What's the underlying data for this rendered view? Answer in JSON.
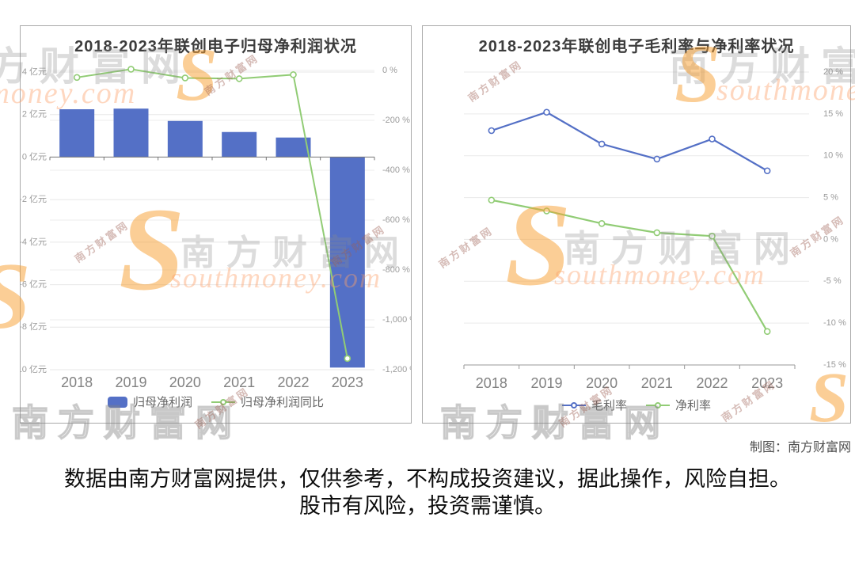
{
  "page": {
    "credit": "制图：南方财富网",
    "disclaimer_line1": "数据由南方财富网提供，仅供参考，不构成投资建议，据此操作，风险自担。",
    "disclaimer_line2": "股市有风险，投资需谨慎。"
  },
  "watermark": {
    "brand_cn": "南方财富网",
    "brand_en": "southmoney.com",
    "s_glyph": "S"
  },
  "chart_data": [
    {
      "type": "bar",
      "title": "2018-2023年联创电子归母净利润状况",
      "categories": [
        "2018",
        "2019",
        "2020",
        "2021",
        "2022",
        "2023"
      ],
      "series": [
        {
          "name": "归母净利润",
          "kind": "bar",
          "axis": "left",
          "color": "#5470c6",
          "values": [
            2.25,
            2.28,
            1.7,
            1.18,
            0.92,
            -9.9
          ]
        },
        {
          "name": "归母净利润同比",
          "kind": "line",
          "axis": "right",
          "color": "#91cc75",
          "values": [
            -28,
            5,
            -30,
            -33,
            -17,
            -1155
          ]
        }
      ],
      "left_axis": {
        "unit_suffix": " 亿元",
        "max": 4,
        "min": -10,
        "ticks": [
          4,
          2,
          0,
          -2,
          -4,
          -6,
          -8,
          -10
        ]
      },
      "right_axis": {
        "unit_suffix": " %",
        "max": 0,
        "min": -1200,
        "ticks": [
          0,
          -200,
          -400,
          -600,
          -800,
          -1000,
          -1200
        ]
      },
      "legend_position": "bottom",
      "grid": true
    },
    {
      "type": "line",
      "title": "2018-2023年联创电子毛利率与净利率状况",
      "categories": [
        "2018",
        "2019",
        "2020",
        "2021",
        "2022",
        "2023"
      ],
      "series": [
        {
          "name": "毛利率",
          "kind": "line",
          "axis": "right",
          "color": "#5470c6",
          "values": [
            13.0,
            15.2,
            11.4,
            9.6,
            12.0,
            8.2
          ]
        },
        {
          "name": "净利率",
          "kind": "line",
          "axis": "right",
          "color": "#91cc75",
          "values": [
            4.7,
            3.4,
            1.9,
            0.8,
            0.4,
            -11.0
          ]
        }
      ],
      "right_axis": {
        "unit_suffix": " %",
        "max": 20,
        "min": -15,
        "ticks": [
          20,
          15,
          10,
          5,
          0,
          -5,
          -10,
          -15
        ]
      },
      "legend_position": "bottom",
      "grid": true
    }
  ]
}
